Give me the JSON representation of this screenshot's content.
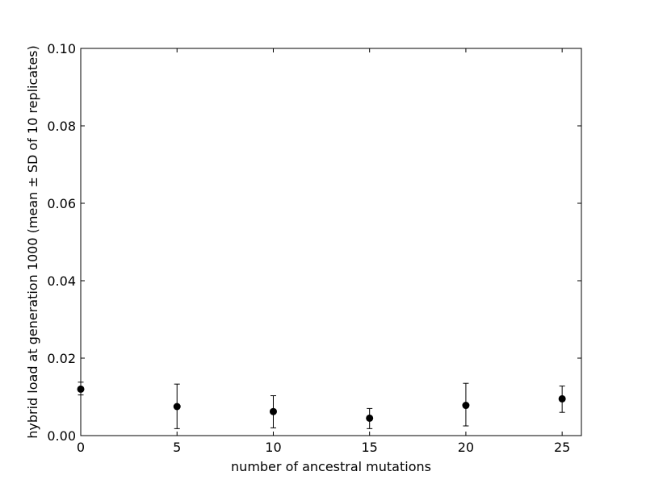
{
  "chart_data": {
    "type": "scatter",
    "title": "",
    "xlabel": "number of ancestral mutations",
    "ylabel": "hybrid load at generation 1000 (mean ± SD of 10 replicates)",
    "xlim": [
      0,
      26
    ],
    "ylim": [
      0,
      0.1
    ],
    "x_ticks": [
      0,
      5,
      10,
      15,
      20,
      25
    ],
    "x_tick_labels": [
      "0",
      "5",
      "10",
      "15",
      "20",
      "25"
    ],
    "y_ticks": [
      0,
      0.02,
      0.04,
      0.06,
      0.08,
      0.1
    ],
    "y_tick_labels": [
      "0.00",
      "0.02",
      "0.04",
      "0.06",
      "0.08",
      "0.10"
    ],
    "grid": false,
    "legend": "none",
    "marker_color": "#000000",
    "points": [
      {
        "x": 0,
        "y": 0.012,
        "sd_low": 0.0105,
        "sd_high": 0.0138
      },
      {
        "x": 5,
        "y": 0.0075,
        "sd_low": 0.0018,
        "sd_high": 0.0133
      },
      {
        "x": 10,
        "y": 0.0062,
        "sd_low": 0.002,
        "sd_high": 0.0103
      },
      {
        "x": 15,
        "y": 0.0045,
        "sd_low": 0.0018,
        "sd_high": 0.007
      },
      {
        "x": 20,
        "y": 0.0078,
        "sd_low": 0.0025,
        "sd_high": 0.0135
      },
      {
        "x": 25,
        "y": 0.0095,
        "sd_low": 0.006,
        "sd_high": 0.0128
      }
    ]
  }
}
